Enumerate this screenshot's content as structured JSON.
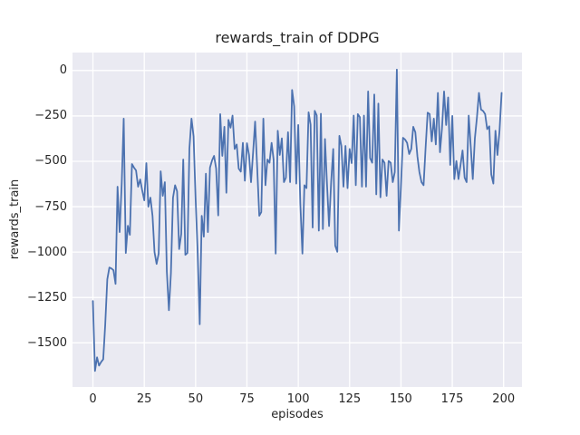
{
  "chart_data": {
    "type": "line",
    "title": "rewards_train of DDPG",
    "xlabel": "episodes",
    "ylabel": "rewards_train",
    "legend_position": "none",
    "grid": true,
    "xlim": [
      -9.95,
      208.95
    ],
    "ylim": [
      -1743,
      99
    ],
    "x_ticks": [
      {
        "v": 0,
        "label": "0"
      },
      {
        "v": 25,
        "label": "25"
      },
      {
        "v": 50,
        "label": "50"
      },
      {
        "v": 75,
        "label": "75"
      },
      {
        "v": 100,
        "label": "100"
      },
      {
        "v": 125,
        "label": "125"
      },
      {
        "v": 150,
        "label": "150"
      },
      {
        "v": 175,
        "label": "175"
      },
      {
        "v": 200,
        "label": "200"
      }
    ],
    "y_ticks": [
      {
        "v": 0,
        "label": "0"
      },
      {
        "v": -250,
        "label": "−250"
      },
      {
        "v": -500,
        "label": "−500"
      },
      {
        "v": -750,
        "label": "−750"
      },
      {
        "v": -1000,
        "label": "−1000"
      },
      {
        "v": -1250,
        "label": "−1250"
      },
      {
        "v": -1500,
        "label": "−1500"
      }
    ],
    "style": {
      "line_color": "#4c72b0",
      "plot_bg": "#eaeaf2",
      "grid_color": "#ffffff",
      "fig_bg": "#ffffff",
      "text_color": "#262626",
      "line_width": 1.8,
      "grid_width": 1.3
    },
    "series": [
      {
        "name": "rewards_train",
        "x_start": 0,
        "x_step": 1,
        "values": [
          -1270,
          -1655,
          -1580,
          -1625,
          -1605,
          -1590,
          -1400,
          -1150,
          -1085,
          -1090,
          -1100,
          -1175,
          -640,
          -890,
          -625,
          -265,
          -1005,
          -855,
          -905,
          -515,
          -535,
          -550,
          -640,
          -600,
          -660,
          -715,
          -510,
          -750,
          -700,
          -800,
          -1000,
          -1065,
          -1008,
          -555,
          -690,
          -615,
          -1108,
          -1320,
          -1117,
          -700,
          -632,
          -665,
          -983,
          -900,
          -490,
          -1015,
          -1005,
          -430,
          -265,
          -362,
          -700,
          -1000,
          -1398,
          -800,
          -915,
          -568,
          -890,
          -535,
          -495,
          -470,
          -540,
          -798,
          -240,
          -470,
          -310,
          -673,
          -272,
          -315,
          -248,
          -432,
          -407,
          -540,
          -557,
          -398,
          -607,
          -400,
          -465,
          -615,
          -450,
          -281,
          -535,
          -800,
          -780,
          -265,
          -632,
          -490,
          -508,
          -398,
          -490,
          -1008,
          -332,
          -465,
          -373,
          -615,
          -590,
          -340,
          -615,
          -107,
          -198,
          -623,
          -300,
          -732,
          -1008,
          -632,
          -648,
          -230,
          -298,
          -865,
          -222,
          -247,
          -882,
          -238,
          -873,
          -377,
          -632,
          -857,
          -615,
          -432,
          -965,
          -998,
          -360,
          -415,
          -640,
          -415,
          -648,
          -432,
          -510,
          -248,
          -632,
          -240,
          -257,
          -640,
          -248,
          -640,
          -115,
          -482,
          -508,
          -132,
          -682,
          -182,
          -698,
          -490,
          -508,
          -690,
          -498,
          -508,
          -615,
          -560,
          5,
          -882,
          -640,
          -370,
          -380,
          -398,
          -460,
          -432,
          -310,
          -340,
          -473,
          -560,
          -615,
          -632,
          -428,
          -232,
          -240,
          -390,
          -265,
          -407,
          -123,
          -450,
          -320,
          -115,
          -300,
          -148,
          -520,
          -250,
          -598,
          -498,
          -598,
          -523,
          -440,
          -590,
          -615,
          -248,
          -423,
          -598,
          -373,
          -257,
          -123,
          -215,
          -223,
          -240,
          -323,
          -307,
          -573,
          -623,
          -332,
          -465,
          -332,
          -123
        ]
      }
    ]
  }
}
